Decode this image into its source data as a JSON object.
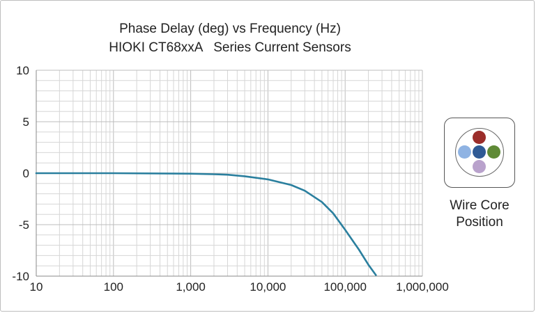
{
  "chart_data": {
    "type": "line",
    "title": "Phase Delay (deg) vs Frequency (Hz)",
    "subtitle": "HIOKI CT68xxA   Series Current Sensors",
    "xlabel": "",
    "ylabel": "",
    "x_scale": "log",
    "xlim": [
      10,
      1000000
    ],
    "ylim": [
      -10,
      10
    ],
    "x_ticks": [
      10,
      100,
      1000,
      10000,
      100000,
      1000000
    ],
    "x_tick_labels": [
      "10",
      "100",
      "1,000",
      "10,000",
      "100,000",
      "1,000,000"
    ],
    "y_ticks": [
      10,
      5,
      0,
      -5,
      -10
    ],
    "y_tick_labels": [
      "10",
      "5",
      "0",
      "-5",
      "-10"
    ],
    "grid": true,
    "series": [
      {
        "color": "#2a7f9e",
        "x": [
          10,
          100,
          1000,
          2000,
          3000,
          5000,
          10000,
          20000,
          30000,
          50000,
          70000,
          100000,
          150000,
          200000,
          250000
        ],
        "y": [
          0,
          0,
          -0.05,
          -0.1,
          -0.15,
          -0.3,
          -0.6,
          -1.15,
          -1.7,
          -2.8,
          -3.9,
          -5.5,
          -7.4,
          -8.9,
          -9.9
        ]
      }
    ]
  },
  "legend": {
    "caption_line1": "Wire Core",
    "caption_line2": "Position",
    "cores": [
      {
        "icon": "core-top",
        "color": "#9b2d2a"
      },
      {
        "icon": "core-left",
        "color": "#8fb3e3"
      },
      {
        "icon": "core-center",
        "color": "#2f5a95"
      },
      {
        "icon": "core-right",
        "color": "#5f8a36"
      },
      {
        "icon": "core-bottom",
        "color": "#b9a2cc"
      }
    ]
  }
}
